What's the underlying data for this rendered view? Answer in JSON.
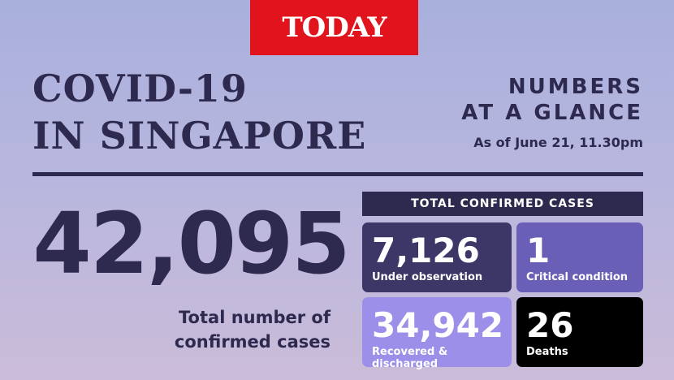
{
  "logo": "TODAY",
  "title": [
    "COVID-19",
    "IN SINGAPORE"
  ],
  "subtitle": [
    "NUMBERS",
    "AT A GLANCE"
  ],
  "as_of": "As of June 21, 11.30pm",
  "total": {
    "value": "42,095",
    "caption": [
      "Total number of",
      "confirmed cases"
    ]
  },
  "panel": {
    "header": "TOTAL CONFIRMED CASES",
    "cells": [
      {
        "value": "7,126",
        "label": "Under observation"
      },
      {
        "value": "1",
        "label": "Critical condition"
      },
      {
        "value": "34,942",
        "label": "Recovered & discharged"
      },
      {
        "value": "26",
        "label": "Deaths"
      }
    ]
  }
}
